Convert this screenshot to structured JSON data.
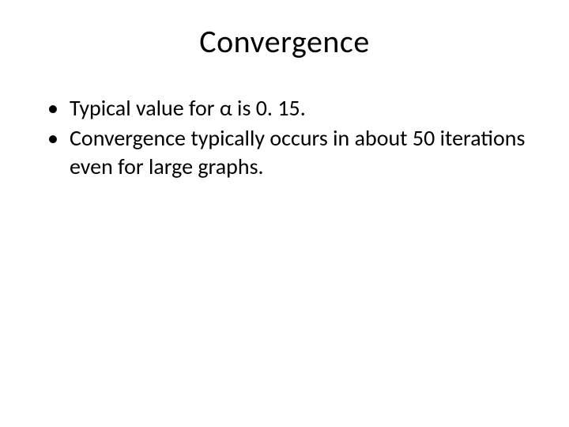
{
  "slide": {
    "title": "Convergence",
    "bullets": [
      "Typical value for α is 0. 15.",
      "Convergence typically occurs in about 50 iterations even for large graphs."
    ]
  },
  "styling": {
    "background_color": "#ffffff",
    "text_color": "#000000",
    "title_fontsize": 40,
    "title_fontweight": 400,
    "body_fontsize": 28,
    "font_family": "Calibri",
    "slide_width": 720,
    "slide_height": 540,
    "title_alignment": "center",
    "bullet_marker": "•"
  }
}
